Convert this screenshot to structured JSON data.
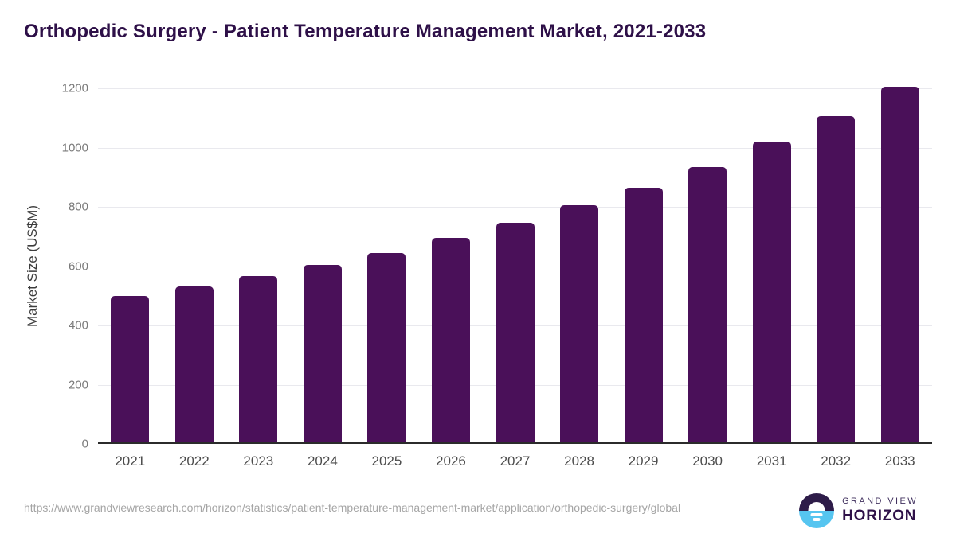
{
  "chart_data": {
    "type": "bar",
    "title": "Orthopedic Surgery - Patient Temperature Management Market, 2021-2033",
    "categories": [
      "2021",
      "2022",
      "2023",
      "2024",
      "2025",
      "2026",
      "2027",
      "2028",
      "2029",
      "2030",
      "2031",
      "2032",
      "2033"
    ],
    "values": [
      495,
      525,
      560,
      600,
      640,
      690,
      740,
      800,
      860,
      930,
      1015,
      1100,
      1200
    ],
    "xlabel": "",
    "ylabel": "Market Size (US$M)",
    "ylim": [
      0,
      1200
    ],
    "yticks": [
      0,
      200,
      400,
      600,
      800,
      1000,
      1200
    ],
    "grid": "horizontal",
    "legend": "none",
    "bar_color": "#4a1059"
  },
  "footer": {
    "source_url": "https://www.grandviewresearch.com/horizon/statistics/patient-temperature-management-market/application/orthopedic-surgery/global",
    "logo": {
      "line1": "GRAND VIEW",
      "line2": "HORIZON"
    }
  },
  "colors": {
    "bar": "#4a1059",
    "title": "#2e1048",
    "grid": "#e9e9ee",
    "axis_line": "#2b2b2b",
    "y_tick": "#7a7a7a",
    "x_tick": "#4c4c4c",
    "url_text": "#a5a5a5",
    "logo_purple": "#2e1c49",
    "logo_blue": "#56c5f0"
  }
}
